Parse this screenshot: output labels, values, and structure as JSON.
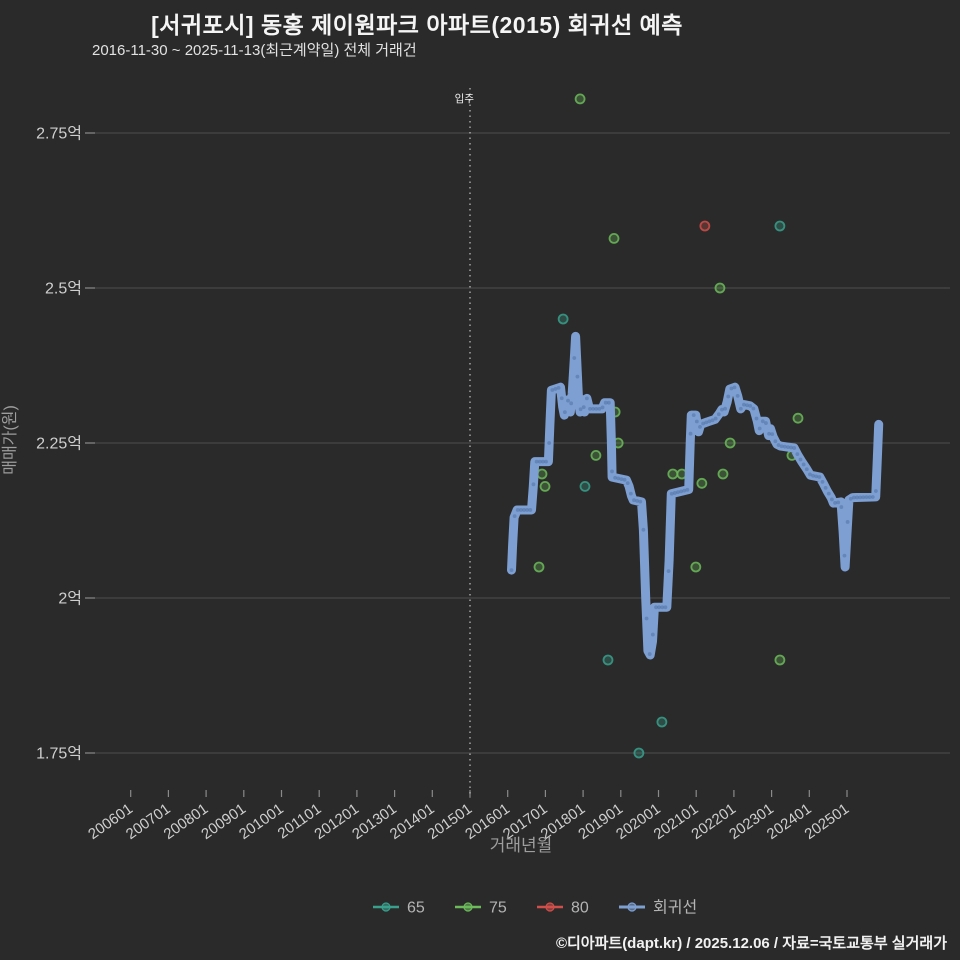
{
  "header": {
    "title": "[서귀포시] 동홍 제이원파크 아파트(2015) 회귀선 예측",
    "subtitle": "2016-11-30 ~ 2025-11-13(최근계약일) 전체 거래건"
  },
  "footer": {
    "credit": "©디아파트(dapt.kr) / 2025.12.06 / 자료=국토교통부 실거래가"
  },
  "chart_data": {
    "type": "line",
    "title": "[서귀포시] 동홍 제이원파크 아파트(2015) 회귀선 예측",
    "background_color": "#2a2a2a",
    "gridline_color": "#4f4f4f",
    "tick_color": "#8a8a8a",
    "tick_label_color": "#cfcfcf",
    "axis_title_color": "#9e9e9e",
    "legend_label_color": "#b4b4b4",
    "grid": "horizontal-only",
    "legend_position": "bottom-center",
    "xlabel": "거래년월",
    "ylabel": "매매가(원)",
    "x_axis": {
      "tick_labels": [
        "200601",
        "200701",
        "200801",
        "200901",
        "201001",
        "201101",
        "201201",
        "201301",
        "201401",
        "201501",
        "201601",
        "201701",
        "201801",
        "201901",
        "202001",
        "202101",
        "202201",
        "202301",
        "202401",
        "202501"
      ]
    },
    "y_axis": {
      "tick_labels": [
        "1.75억",
        "2억",
        "2.25억",
        "2.5억",
        "2.75억"
      ],
      "tick_values": [
        1.75,
        2.0,
        2.25,
        2.5,
        2.75
      ],
      "unit": "억",
      "ylim": [
        1.69,
        2.82
      ]
    },
    "annotation": {
      "label": "입주",
      "year": 2015,
      "style": "vertical-dotted-line"
    },
    "legend": [
      {
        "label": "65",
        "color": "#38a08c",
        "type": "scatter"
      },
      {
        "label": "75",
        "color": "#6cba5a",
        "type": "scatter"
      },
      {
        "label": "80",
        "color": "#d14f4a",
        "type": "scatter"
      },
      {
        "label": "회귀선",
        "color": "#7e9fd1",
        "type": "line"
      }
    ],
    "scatter_series": [
      {
        "name": "65",
        "color": "#38a08c",
        "points": [
          [
            2017.47,
            2.45
          ],
          [
            2018.05,
            2.18
          ],
          [
            2018.66,
            1.9
          ],
          [
            2019.48,
            1.75
          ],
          [
            2020.09,
            1.8
          ],
          [
            2023.22,
            2.6
          ]
        ]
      },
      {
        "name": "75",
        "color": "#6cba5a",
        "points": [
          [
            2016.83,
            2.05
          ],
          [
            2016.91,
            2.2
          ],
          [
            2016.99,
            2.18
          ],
          [
            2017.92,
            2.805
          ],
          [
            2018.34,
            2.23
          ],
          [
            2018.82,
            2.58
          ],
          [
            2018.85,
            2.3
          ],
          [
            2018.93,
            2.25
          ],
          [
            2020.38,
            2.2
          ],
          [
            2020.62,
            2.2
          ],
          [
            2020.99,
            2.05
          ],
          [
            2021.15,
            2.185
          ],
          [
            2021.63,
            2.5
          ],
          [
            2021.71,
            2.2
          ],
          [
            2021.9,
            2.25
          ],
          [
            2023.22,
            1.9
          ],
          [
            2023.54,
            2.23
          ],
          [
            2023.7,
            2.29
          ]
        ]
      },
      {
        "name": "80",
        "color": "#d14f4a",
        "points": [
          [
            2021.23,
            2.6
          ]
        ]
      }
    ],
    "regression_line": {
      "name": "회귀선",
      "color": "#7e9fd1",
      "marker_color": "#4a6d9f",
      "points": [
        [
          2016.1,
          2.045
        ],
        [
          2016.13,
          2.085
        ],
        [
          2016.17,
          2.13
        ],
        [
          2016.25,
          2.142
        ],
        [
          2016.63,
          2.142
        ],
        [
          2016.68,
          2.18
        ],
        [
          2016.72,
          2.22
        ],
        [
          2017.08,
          2.22
        ],
        [
          2017.12,
          2.28
        ],
        [
          2017.16,
          2.335
        ],
        [
          2017.4,
          2.34
        ],
        [
          2017.46,
          2.308
        ],
        [
          2017.5,
          2.295
        ],
        [
          2017.56,
          2.312
        ],
        [
          2017.61,
          2.32
        ],
        [
          2017.66,
          2.3
        ],
        [
          2017.71,
          2.33
        ],
        [
          2017.76,
          2.38
        ],
        [
          2017.8,
          2.422
        ],
        [
          2017.84,
          2.37
        ],
        [
          2017.88,
          2.318
        ],
        [
          2017.92,
          2.3
        ],
        [
          2017.98,
          2.32
        ],
        [
          2018.04,
          2.3
        ],
        [
          2018.1,
          2.322
        ],
        [
          2018.17,
          2.305
        ],
        [
          2018.5,
          2.305
        ],
        [
          2018.57,
          2.315
        ],
        [
          2018.72,
          2.315
        ],
        [
          2018.75,
          2.25
        ],
        [
          2018.77,
          2.195
        ],
        [
          2019.15,
          2.19
        ],
        [
          2019.22,
          2.18
        ],
        [
          2019.28,
          2.165
        ],
        [
          2019.33,
          2.158
        ],
        [
          2019.55,
          2.155
        ],
        [
          2019.6,
          2.11
        ],
        [
          2019.66,
          2.0
        ],
        [
          2019.72,
          1.915
        ],
        [
          2019.78,
          1.908
        ],
        [
          2019.84,
          1.93
        ],
        [
          2019.89,
          1.985
        ],
        [
          2020.22,
          1.985
        ],
        [
          2020.28,
          2.06
        ],
        [
          2020.34,
          2.168
        ],
        [
          2020.8,
          2.175
        ],
        [
          2020.84,
          2.25
        ],
        [
          2020.87,
          2.295
        ],
        [
          2020.99,
          2.295
        ],
        [
          2021.06,
          2.268
        ],
        [
          2021.12,
          2.28
        ],
        [
          2021.3,
          2.284
        ],
        [
          2021.5,
          2.288
        ],
        [
          2021.62,
          2.298
        ],
        [
          2021.68,
          2.304
        ],
        [
          2021.74,
          2.3
        ],
        [
          2021.82,
          2.316
        ],
        [
          2021.89,
          2.337
        ],
        [
          2022.03,
          2.34
        ],
        [
          2022.1,
          2.326
        ],
        [
          2022.18,
          2.305
        ],
        [
          2022.26,
          2.312
        ],
        [
          2022.43,
          2.31
        ],
        [
          2022.53,
          2.305
        ],
        [
          2022.62,
          2.285
        ],
        [
          2022.67,
          2.27
        ],
        [
          2022.73,
          2.285
        ],
        [
          2022.84,
          2.285
        ],
        [
          2022.92,
          2.262
        ],
        [
          2022.97,
          2.273
        ],
        [
          2023.04,
          2.26
        ],
        [
          2023.14,
          2.248
        ],
        [
          2023.24,
          2.245
        ],
        [
          2023.6,
          2.242
        ],
        [
          2023.7,
          2.23
        ],
        [
          2023.8,
          2.22
        ],
        [
          2023.93,
          2.208
        ],
        [
          2024.03,
          2.198
        ],
        [
          2024.28,
          2.195
        ],
        [
          2024.38,
          2.184
        ],
        [
          2024.48,
          2.172
        ],
        [
          2024.58,
          2.162
        ],
        [
          2024.64,
          2.153
        ],
        [
          2024.84,
          2.155
        ],
        [
          2024.9,
          2.105
        ],
        [
          2024.95,
          2.05
        ],
        [
          2025.0,
          2.105
        ],
        [
          2025.05,
          2.158
        ],
        [
          2025.15,
          2.162
        ],
        [
          2025.76,
          2.163
        ],
        [
          2025.8,
          2.22
        ],
        [
          2025.84,
          2.28
        ]
      ]
    }
  }
}
